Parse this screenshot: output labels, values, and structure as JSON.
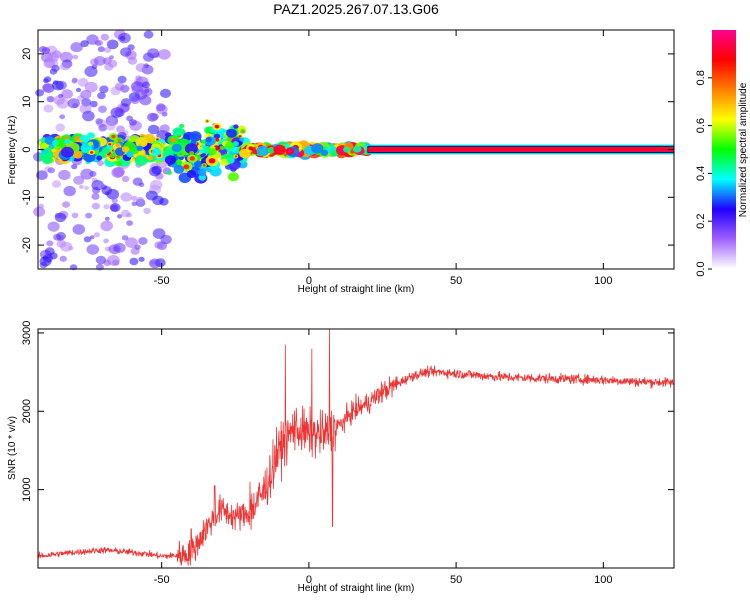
{
  "figure": {
    "title": "PAZ1.2025.267.07.13.G06"
  },
  "chart_data": [
    {
      "type": "heatmap",
      "xlabel": "Height of straight line (km)",
      "ylabel": "Frequency (Hz)",
      "xlim": [
        -92,
        124
      ],
      "ylim": [
        -25,
        25
      ],
      "xticks": [
        -50,
        0,
        50,
        100
      ],
      "yticks": [
        -20,
        -10,
        0,
        10,
        20
      ],
      "colorbar": {
        "label": "Normalized spectral amplitude",
        "range": [
          0.0,
          1.0
        ],
        "ticks": [
          0.0,
          0.2,
          0.4,
          0.6,
          0.8
        ],
        "colormap": "rainbow",
        "colors": [
          "#ffffff",
          "#a060ff",
          "#2000ff",
          "#00ffff",
          "#00ff00",
          "#ffff00",
          "#ff8000",
          "#ff0000",
          "#ff0090"
        ]
      },
      "signal_band": {
        "x_start": 20,
        "x_end": 124,
        "center_frequency": 0,
        "half_width": 0.6,
        "amplitude": 0.95,
        "border_color": "#000000"
      },
      "clusters": [
        {
          "x_start": -92,
          "x_end": -48,
          "f_spread": 25,
          "amplitude": 0.2
        },
        {
          "x_start": -90,
          "x_end": -50,
          "f_spread": 4,
          "amplitude": 0.55
        },
        {
          "x_start": -48,
          "x_end": -22,
          "f_spread": 8,
          "amplitude": 0.5
        },
        {
          "x_start": -22,
          "x_end": 20,
          "f_spread": 1.5,
          "amplitude": 0.75
        }
      ]
    },
    {
      "type": "line",
      "xlabel": "Height of straight line (km)",
      "ylabel": "SNR (10 * v/v)",
      "xlim": [
        -92,
        124
      ],
      "ylim": [
        0,
        3050
      ],
      "xticks": [
        -50,
        0,
        50,
        100
      ],
      "yticks": [
        1000,
        2000,
        3000
      ],
      "color": "#ee3333",
      "x": [
        -92,
        -85,
        -80,
        -70,
        -60,
        -55,
        -50,
        -45,
        -40,
        -35,
        -30,
        -25,
        -20,
        -15,
        -10,
        -5,
        0,
        5,
        10,
        15,
        20,
        25,
        30,
        35,
        40,
        45,
        50,
        55,
        60,
        70,
        80,
        90,
        100,
        110,
        120,
        124
      ],
      "y": [
        150,
        180,
        200,
        230,
        200,
        180,
        150,
        160,
        180,
        500,
        750,
        650,
        700,
        1000,
        1500,
        1800,
        1700,
        1700,
        1800,
        2000,
        2100,
        2250,
        2350,
        2450,
        2500,
        2500,
        2480,
        2470,
        2450,
        2430,
        2420,
        2410,
        2400,
        2380,
        2370,
        2360
      ],
      "spikes": [
        {
          "x": -40,
          "y": 500
        },
        {
          "x": -32,
          "y": 1050
        },
        {
          "x": -20,
          "y": 1100
        },
        {
          "x": -11,
          "y": 1800
        },
        {
          "x": -8,
          "y": 2850
        },
        {
          "x": 1,
          "y": 2800
        },
        {
          "x": 7,
          "y": 3050
        },
        {
          "x": 8,
          "y": 530
        }
      ]
    }
  ]
}
